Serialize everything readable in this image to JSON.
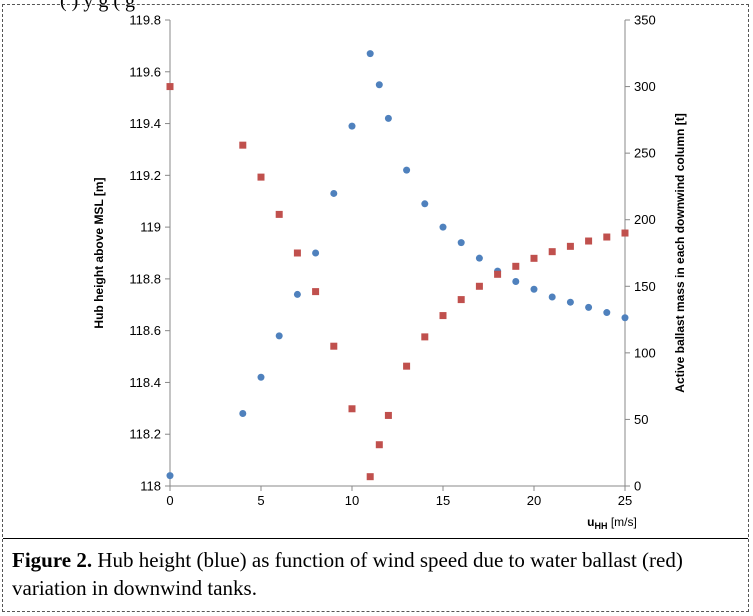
{
  "top_fragment": "(    )                     y           g                                      (  g",
  "caption": {
    "label": "Figure 2.",
    "text": " Hub height (blue) as function of wind speed due to water ballast (red) variation in downwind tanks."
  },
  "chart_data": {
    "type": "scatter",
    "xlabel_main": "u",
    "xlabel_sub": "HH",
    "xlabel_unit": " [m/s]",
    "ylabel_left": "Hub height above MSL  [m]",
    "ylabel_right": "Active ballast mass in each downwind column  [t]",
    "xlim": [
      0,
      25
    ],
    "ylim_left": [
      118,
      119.8
    ],
    "ylim_right": [
      0,
      350
    ],
    "x_ticks": [
      0,
      5,
      10,
      15,
      20,
      25
    ],
    "y_left_ticks": [
      118,
      118.2,
      118.4,
      118.6,
      118.8,
      119,
      119.2,
      119.4,
      119.6,
      119.8
    ],
    "y_left_tick_labels": [
      "118",
      "118.2",
      "118.4",
      "118.6",
      "118.8",
      "119",
      "119.2",
      "119.4",
      "119.6",
      "119.8"
    ],
    "y_right_ticks": [
      0,
      50,
      100,
      150,
      200,
      250,
      300,
      350
    ],
    "grid": false,
    "legend": "none",
    "series": [
      {
        "color": "#4f81bd",
        "marker": "circle",
        "axis": "left",
        "x": [
          0,
          4,
          5,
          6,
          7,
          8,
          9,
          10,
          11,
          11.5,
          12,
          13,
          14,
          15,
          16,
          17,
          18,
          19,
          20,
          21,
          22,
          23,
          24,
          25
        ],
        "y": [
          118.04,
          118.28,
          118.42,
          118.58,
          118.74,
          118.9,
          119.13,
          119.39,
          119.67,
          119.55,
          119.42,
          119.22,
          119.09,
          119.0,
          118.94,
          118.88,
          118.83,
          118.79,
          118.76,
          118.73,
          118.71,
          118.69,
          118.67,
          118.65
        ]
      },
      {
        "color": "#c0504d",
        "marker": "square",
        "axis": "right",
        "x": [
          0,
          4,
          5,
          6,
          7,
          8,
          9,
          10,
          11,
          11.5,
          12,
          13,
          14,
          15,
          16,
          17,
          18,
          19,
          20,
          21,
          22,
          23,
          24,
          25
        ],
        "y": [
          300,
          256,
          232,
          204,
          175,
          146,
          105,
          58,
          7,
          31,
          53,
          90,
          112,
          128,
          140,
          150,
          159,
          165,
          171,
          176,
          180,
          184,
          187,
          190
        ]
      }
    ]
  }
}
